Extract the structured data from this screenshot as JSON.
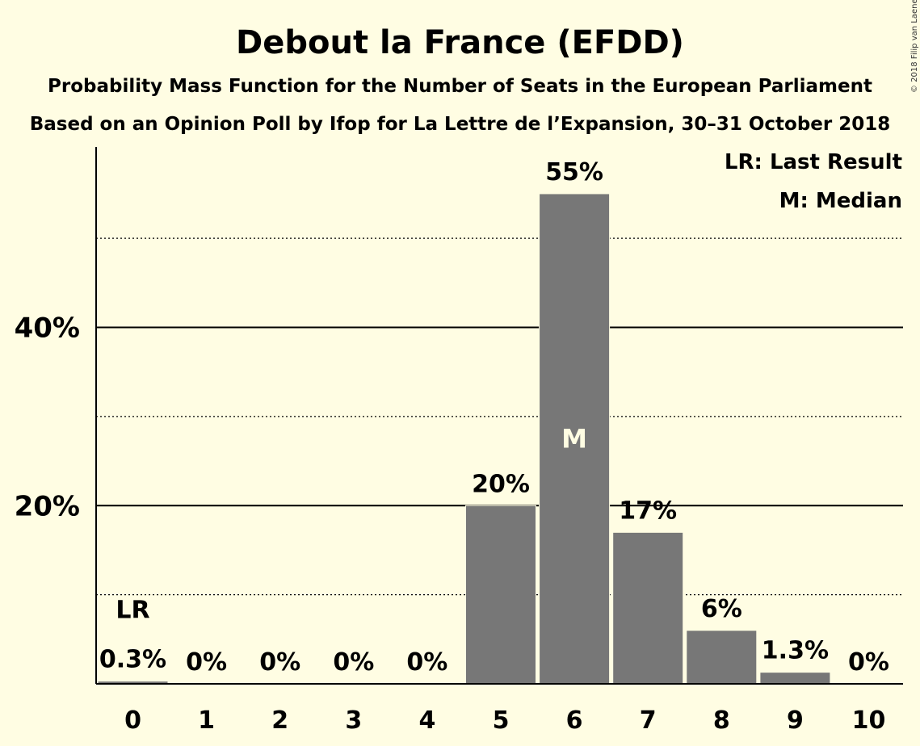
{
  "header": {
    "title": "Debout la France (EFDD)",
    "subtitle1": "Probability Mass Function for the Number of Seats in the European Parliament",
    "subtitle2": "Based on an Opinion Poll by Ifop for La Lettre de l’Expansion, 30–31 October 2018",
    "copyright": "© 2018 Filip van Laenen"
  },
  "legend": {
    "last_result": "LR: Last Result",
    "median": "M: Median"
  },
  "colors": {
    "background": "#FFFDE3",
    "bar": "#777777",
    "text": "#000000"
  },
  "chart_data": {
    "type": "bar",
    "title": "Debout la France (EFDD)",
    "xlabel": "",
    "ylabel": "",
    "categories": [
      "0",
      "1",
      "2",
      "3",
      "4",
      "5",
      "6",
      "7",
      "8",
      "9",
      "10"
    ],
    "values": [
      0.3,
      0,
      0,
      0,
      0,
      20,
      55,
      17,
      6,
      1.3,
      0
    ],
    "labels": [
      "0.3%",
      "0%",
      "0%",
      "0%",
      "0%",
      "20%",
      "55%",
      "17%",
      "6%",
      "1.3%",
      "0%"
    ],
    "ylim": [
      0,
      60
    ],
    "yticks": [
      {
        "value": 20,
        "label": "20%"
      },
      {
        "value": 40,
        "label": "40%"
      }
    ],
    "dotted_gridlines": [
      10,
      30,
      50
    ],
    "last_result_category": "0",
    "last_result_marker": "LR",
    "median_category": "6",
    "median_marker": "M",
    "legend_position": "top-right"
  }
}
